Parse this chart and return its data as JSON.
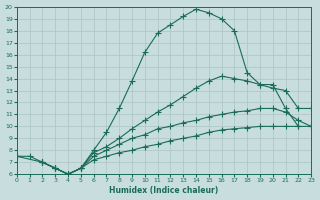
{
  "xlabel": "Humidex (Indice chaleur)",
  "xlim": [
    0,
    23
  ],
  "ylim": [
    6,
    20
  ],
  "xticks": [
    0,
    1,
    2,
    3,
    4,
    5,
    6,
    7,
    8,
    9,
    10,
    11,
    12,
    13,
    14,
    15,
    16,
    17,
    18,
    19,
    20,
    21,
    22,
    23
  ],
  "yticks": [
    6,
    7,
    8,
    9,
    10,
    11,
    12,
    13,
    14,
    15,
    16,
    17,
    18,
    19,
    20
  ],
  "bg_color": "#c8dede",
  "grid_color": "#b0c8c8",
  "line_color": "#1a6b5a",
  "line1_x": [
    0,
    1,
    2,
    3,
    4,
    5,
    6,
    7,
    8,
    9,
    10,
    11,
    12,
    13,
    14,
    15,
    16,
    17,
    18,
    19,
    20,
    21,
    22,
    23
  ],
  "line1_y": [
    7.5,
    7.5,
    7.0,
    6.5,
    6.0,
    6.5,
    8.0,
    9.5,
    11.5,
    13.8,
    16.2,
    17.8,
    18.5,
    19.2,
    19.8,
    19.5,
    19.0,
    18.0,
    14.5,
    13.5,
    13.5,
    11.5,
    10.0,
    null
  ],
  "line2_x": [
    2,
    3,
    4,
    5,
    6,
    7,
    8,
    9,
    10,
    11,
    12,
    13,
    14,
    15,
    16,
    17,
    18,
    19,
    20,
    21,
    22,
    23
  ],
  "line2_y": [
    7.0,
    6.5,
    6.0,
    6.5,
    7.8,
    8.3,
    9.0,
    9.8,
    10.5,
    11.2,
    11.8,
    12.5,
    13.2,
    13.8,
    14.2,
    14.0,
    13.8,
    13.5,
    13.2,
    13.0,
    11.5,
    11.5
  ],
  "line3_x": [
    2,
    3,
    4,
    5,
    6,
    7,
    8,
    9,
    10,
    11,
    12,
    13,
    14,
    15,
    16,
    17,
    18,
    19,
    20,
    21,
    22,
    23
  ],
  "line3_y": [
    7.0,
    6.5,
    6.0,
    6.5,
    7.5,
    8.0,
    8.5,
    9.0,
    9.3,
    9.8,
    10.0,
    10.3,
    10.5,
    10.8,
    11.0,
    11.2,
    11.3,
    11.5,
    11.5,
    11.2,
    10.5,
    10.0
  ],
  "line4_x": [
    0,
    2,
    3,
    4,
    5,
    6,
    7,
    8,
    9,
    10,
    11,
    12,
    13,
    14,
    15,
    16,
    17,
    18,
    19,
    20,
    21,
    22,
    23
  ],
  "line4_y": [
    7.5,
    7.0,
    6.5,
    6.0,
    6.5,
    7.2,
    7.5,
    7.8,
    8.0,
    8.3,
    8.5,
    8.8,
    9.0,
    9.2,
    9.5,
    9.7,
    9.8,
    9.9,
    10.0,
    10.0,
    10.0,
    10.0,
    10.0
  ]
}
